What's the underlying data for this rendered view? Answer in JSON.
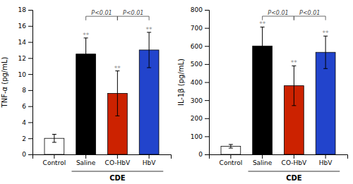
{
  "chart_data": [
    {
      "type": "bar",
      "categories": [
        "Control",
        "Saline",
        "CO-HbV",
        "HbV"
      ],
      "values": [
        2.0,
        12.5,
        7.6,
        13.0
      ],
      "errors": [
        0.5,
        2.0,
        2.8,
        2.2
      ],
      "colors": [
        "white",
        "black",
        "#cc2200",
        "#2244cc"
      ],
      "ylabel": "TNF-α (pg/mL)",
      "ylim": [
        0,
        18
      ],
      "yticks": [
        0,
        2,
        4,
        6,
        8,
        10,
        12,
        14,
        16,
        18
      ],
      "stars": [
        null,
        "**",
        "**",
        "**"
      ],
      "brackets": [
        {
          "from": "Saline",
          "to": "CO-HbV",
          "y": 17.2,
          "drop": 0.5,
          "label": "P<0.01"
        },
        {
          "from": "CO-HbV",
          "to": "HbV",
          "y": 17.2,
          "drop": 0.5,
          "label": "P<0.01"
        }
      ],
      "annotations": [
        {
          "text": "CDE",
          "from": "Saline",
          "to": "HbV"
        }
      ]
    },
    {
      "type": "bar",
      "categories": [
        "Control",
        "Saline",
        "CO-HbV",
        "HbV"
      ],
      "values": [
        45,
        600,
        380,
        565
      ],
      "errors": [
        10,
        105,
        110,
        90
      ],
      "colors": [
        "white",
        "black",
        "#cc2200",
        "#2244cc"
      ],
      "ylabel": "IL-1β (pg/mL)",
      "ylim": [
        0,
        800
      ],
      "yticks": [
        0,
        100,
        200,
        300,
        400,
        500,
        600,
        700,
        800
      ],
      "stars": [
        null,
        "**",
        "**",
        "**"
      ],
      "brackets": [
        {
          "from": "Saline",
          "to": "CO-HbV",
          "y": 765,
          "drop": 22,
          "label": "P<0.01"
        },
        {
          "from": "CO-HbV",
          "to": "HbV",
          "y": 765,
          "drop": 22,
          "label": "P<0.01"
        }
      ],
      "annotations": [
        {
          "text": "CDE",
          "from": "Saline",
          "to": "HbV"
        }
      ]
    }
  ]
}
